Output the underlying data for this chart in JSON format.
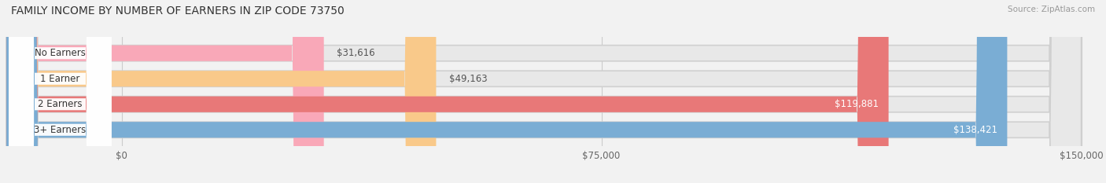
{
  "title": "FAMILY INCOME BY NUMBER OF EARNERS IN ZIP CODE 73750",
  "source": "Source: ZipAtlas.com",
  "categories": [
    "No Earners",
    "1 Earner",
    "2 Earners",
    "3+ Earners"
  ],
  "values": [
    31616,
    49163,
    119881,
    138421
  ],
  "bar_colors": [
    "#f9a8b8",
    "#f9c98a",
    "#e87878",
    "#7aadd4"
  ],
  "bar_bg_color": "#e8e8e8",
  "max_value": 150000,
  "x_ticks": [
    0,
    75000,
    150000
  ],
  "x_tick_labels": [
    "$0",
    "$75,000",
    "$150,000"
  ],
  "figsize": [
    14.06,
    2.33
  ],
  "dpi": 100,
  "background_color": "#f2f2f2"
}
